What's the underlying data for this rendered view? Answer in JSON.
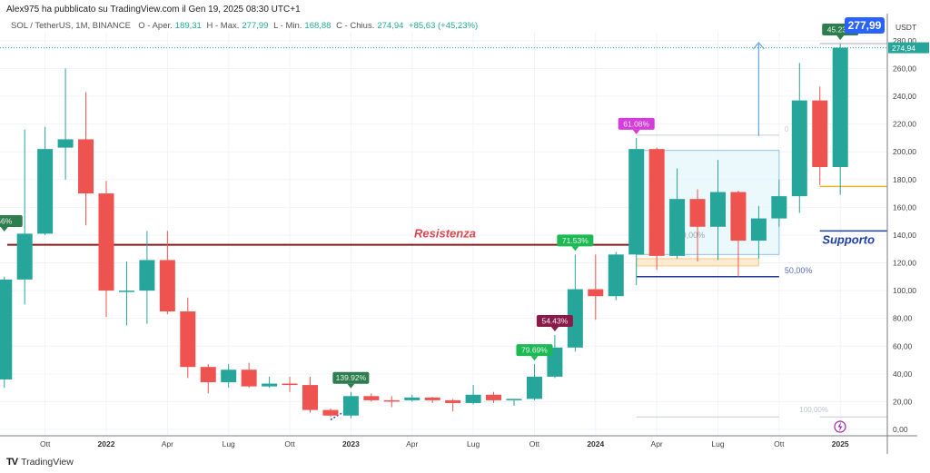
{
  "header": {
    "publisher": "Alex975 ha pubblicato su TradingView.com il Gen 19, 2025 08:30 UTC+1",
    "symbol": "SOL / TetherUS, 1M, BINANCE",
    "open_label": "O - Aper.",
    "open": "189,31",
    "high_label": "H - Max.",
    "high": "277,99",
    "low_label": "L - Min.",
    "low": "168,88",
    "close_label": "C - Chius.",
    "close": "274,94",
    "change": "+85,63 (+45,23%)"
  },
  "footer": {
    "brand": "TradingView",
    "logo": "TV"
  },
  "colors": {
    "up": "#26a69a",
    "down": "#ef5350",
    "resistance": "#8b1a1a",
    "support": "#1e40af",
    "accent": "#2962ff"
  },
  "chart_data": {
    "type": "candlestick",
    "title": "SOL / TetherUS, 1M, BINANCE",
    "ylabel": "USDT",
    "ylim": [
      0,
      280
    ],
    "yticks": [
      "0,00",
      "20,00",
      "40,00",
      "60,00",
      "80,00",
      "100,00",
      "120,00",
      "140,00",
      "160,00",
      "180,00",
      "200,00",
      "220,00",
      "240,00",
      "260,00",
      "280,00"
    ],
    "xticks": [
      {
        "label": "Ott",
        "month": "2021-10",
        "bold": false
      },
      {
        "label": "2022",
        "month": "2022-01",
        "bold": true
      },
      {
        "label": "Apr",
        "month": "2022-04",
        "bold": false
      },
      {
        "label": "Lug",
        "month": "2022-07",
        "bold": false
      },
      {
        "label": "Ott",
        "month": "2022-10",
        "bold": false
      },
      {
        "label": "2023",
        "month": "2023-01",
        "bold": true
      },
      {
        "label": "Apr",
        "month": "2023-04",
        "bold": false
      },
      {
        "label": "Lug",
        "month": "2023-07",
        "bold": false
      },
      {
        "label": "Ott",
        "month": "2023-10",
        "bold": false
      },
      {
        "label": "2024",
        "month": "2024-01",
        "bold": true
      },
      {
        "label": "Apr",
        "month": "2024-04",
        "bold": false
      },
      {
        "label": "Lug",
        "month": "2024-07",
        "bold": false
      },
      {
        "label": "Ott",
        "month": "2024-10",
        "bold": false
      },
      {
        "label": "2025",
        "month": "2025-01",
        "bold": true
      }
    ],
    "candles": [
      {
        "t": "2021-08",
        "o": 36,
        "h": 110,
        "l": 30,
        "c": 108
      },
      {
        "t": "2021-09",
        "o": 108,
        "h": 216,
        "l": 90,
        "c": 141
      },
      {
        "t": "2021-10",
        "o": 141,
        "h": 218,
        "l": 140,
        "c": 202
      },
      {
        "t": "2021-11",
        "o": 203,
        "h": 260,
        "l": 180,
        "c": 209
      },
      {
        "t": "2021-12",
        "o": 209,
        "h": 243,
        "l": 147,
        "c": 170
      },
      {
        "t": "2022-01",
        "o": 170,
        "h": 179,
        "l": 81,
        "c": 100
      },
      {
        "t": "2022-02",
        "o": 99.5,
        "h": 121,
        "l": 75,
        "c": 100
      },
      {
        "t": "2022-03",
        "o": 100,
        "h": 143,
        "l": 76,
        "c": 122
      },
      {
        "t": "2022-04",
        "o": 122,
        "h": 143,
        "l": 83,
        "c": 85
      },
      {
        "t": "2022-05",
        "o": 85,
        "h": 95,
        "l": 37,
        "c": 45
      },
      {
        "t": "2022-06",
        "o": 45,
        "h": 47,
        "l": 26,
        "c": 34
      },
      {
        "t": "2022-07",
        "o": 34,
        "h": 47,
        "l": 30,
        "c": 43
      },
      {
        "t": "2022-08",
        "o": 43,
        "h": 48,
        "l": 30,
        "c": 31
      },
      {
        "t": "2022-09",
        "o": 31,
        "h": 38,
        "l": 30,
        "c": 33
      },
      {
        "t": "2022-10",
        "o": 33,
        "h": 38,
        "l": 27,
        "c": 32
      },
      {
        "t": "2022-11",
        "o": 32,
        "h": 38,
        "l": 12,
        "c": 14
      },
      {
        "t": "2022-12",
        "o": 14,
        "h": 15,
        "l": 9,
        "c": 10
      },
      {
        "t": "2023-01",
        "o": 10,
        "h": 27,
        "l": 8,
        "c": 24
      },
      {
        "t": "2023-02",
        "o": 24,
        "h": 26,
        "l": 20,
        "c": 21
      },
      {
        "t": "2023-03",
        "o": 21,
        "h": 24,
        "l": 16,
        "c": 20.5
      },
      {
        "t": "2023-04",
        "o": 21,
        "h": 25,
        "l": 20,
        "c": 23
      },
      {
        "t": "2023-05",
        "o": 23,
        "h": 23.5,
        "l": 19,
        "c": 21
      },
      {
        "t": "2023-06",
        "o": 21,
        "h": 22,
        "l": 13,
        "c": 19
      },
      {
        "t": "2023-07",
        "o": 19,
        "h": 32,
        "l": 18,
        "c": 25
      },
      {
        "t": "2023-08",
        "o": 25,
        "h": 27,
        "l": 19,
        "c": 21
      },
      {
        "t": "2023-09",
        "o": 21,
        "h": 22,
        "l": 17,
        "c": 22
      },
      {
        "t": "2023-10",
        "o": 22,
        "h": 47,
        "l": 21,
        "c": 38
      },
      {
        "t": "2023-11",
        "o": 38,
        "h": 68,
        "l": 37,
        "c": 59
      },
      {
        "t": "2023-12",
        "o": 59,
        "h": 126,
        "l": 56,
        "c": 101
      },
      {
        "t": "2024-01",
        "o": 101,
        "h": 126,
        "l": 79,
        "c": 96
      },
      {
        "t": "2024-02",
        "o": 96,
        "h": 128,
        "l": 93,
        "c": 126
      },
      {
        "t": "2024-03",
        "o": 126,
        "h": 210,
        "l": 104,
        "c": 202
      },
      {
        "t": "2024-04",
        "o": 202,
        "h": 203,
        "l": 115,
        "c": 125
      },
      {
        "t": "2024-05",
        "o": 125,
        "h": 188,
        "l": 123,
        "c": 166
      },
      {
        "t": "2024-06",
        "o": 166,
        "h": 173,
        "l": 121,
        "c": 146
      },
      {
        "t": "2024-07",
        "o": 146,
        "h": 194,
        "l": 122,
        "c": 171
      },
      {
        "t": "2024-08",
        "o": 171,
        "h": 172,
        "l": 110,
        "c": 136
      },
      {
        "t": "2024-09",
        "o": 136,
        "h": 161,
        "l": 123,
        "c": 152
      },
      {
        "t": "2024-10",
        "o": 152,
        "h": 180,
        "l": 146,
        "c": 168
      },
      {
        "t": "2024-11",
        "o": 168,
        "h": 264,
        "l": 156,
        "c": 237
      },
      {
        "t": "2024-12",
        "o": 237,
        "h": 247,
        "l": 176,
        "c": 189
      },
      {
        "t": "2025-01",
        "o": 189,
        "h": 278,
        "l": 169,
        "c": 275
      }
    ],
    "annotations": [
      {
        "text": "56%",
        "month": "2021-08",
        "price": 140,
        "color": "#2e7d4f"
      },
      {
        "text": "139.92%",
        "month": "2023-01",
        "price": 27,
        "color": "#2e7d4f"
      },
      {
        "text": "79.69%",
        "month": "2023-10",
        "price": 47,
        "color": "#1db954"
      },
      {
        "text": "54.43%",
        "month": "2023-11",
        "price": 68,
        "color": "#8b1a4a"
      },
      {
        "text": "71.53%",
        "month": "2023-12",
        "price": 126,
        "color": "#1db954"
      },
      {
        "text": "61.08%",
        "month": "2024-03",
        "price": 210,
        "color": "#d63bdb"
      },
      {
        "text": "45.23%",
        "month": "2025-01",
        "price": 278,
        "color": "#2e7d4f"
      }
    ],
    "drawings": {
      "resistance_label": "Resistenza",
      "resistance_price": 133,
      "support_label": "Supporto",
      "support_price": 143,
      "level_price": 175,
      "fib_top_label": "0",
      "fib_mid_label": "50,00%",
      "fib_bottom_label": "100,00%",
      "fib_mid_overlay": "50,00%",
      "box_top": 201,
      "box_bottom": 126
    },
    "last_price": "274,94",
    "high_price": "277,99",
    "currency": "USDT"
  }
}
